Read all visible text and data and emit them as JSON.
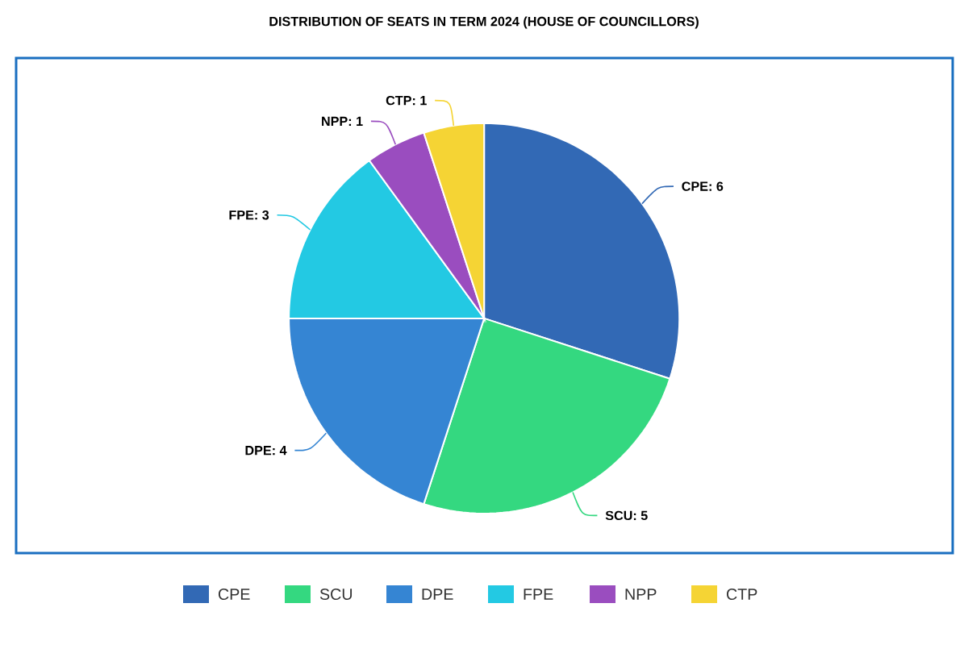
{
  "chart_data": {
    "type": "pie",
    "title": "DISTRIBUTION OF SEATS IN TERM 2024 (HOUSE OF COUNCILLORS)",
    "categories": [
      "CPE",
      "SCU",
      "DPE",
      "FPE",
      "NPP",
      "CTP"
    ],
    "values": [
      6,
      5,
      4,
      3,
      1,
      1
    ],
    "colors": [
      "#3269b5",
      "#34d880",
      "#3585d3",
      "#23c9e3",
      "#9a4dbf",
      "#f5d434"
    ],
    "value_labels": [
      "CPE: 6",
      "SCU: 5",
      "DPE: 4",
      "FPE: 3",
      "NPP: 1",
      "CTP: 1"
    ],
    "legend": "bottom"
  }
}
